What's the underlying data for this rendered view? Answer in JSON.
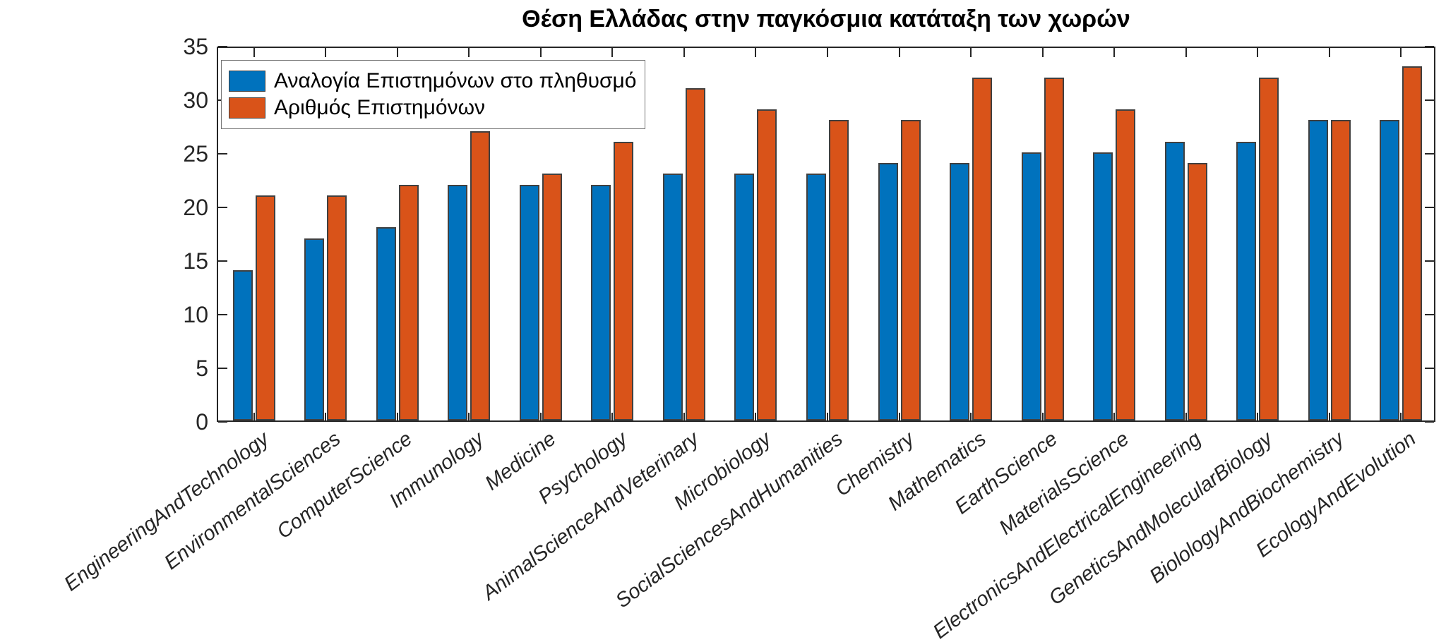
{
  "chart_data": {
    "type": "bar",
    "title": "Θέση Ελλάδας στην παγκόσμια κατάταξη των χωρών",
    "categories": [
      "EngineeringAndTechnology",
      "EnvironmentalSciences",
      "ComputerScience",
      "Immunology",
      "Medicine",
      "Psychology",
      "AnimalScienceAndVeterinary",
      "Microbiology",
      "SocialSciencesAndHumanities",
      "Chemistry",
      "Mathematics",
      "EarthScience",
      "MaterialsScience",
      "ElectronicsAndElectricalEngineering",
      "GeneticsAndMolecularBiology",
      "BiolologyAndBiochemistry",
      "EcologyAndEvolution"
    ],
    "series": [
      {
        "name": "Αναλογία Επιστημόνων στο πληθυσμό",
        "color": "#0072BD",
        "values": [
          14,
          17,
          18,
          22,
          22,
          22,
          23,
          23,
          23,
          24,
          24,
          25,
          25,
          26,
          26,
          28,
          28
        ]
      },
      {
        "name": "Αριθμός Επιστημόνων",
        "color": "#D95319",
        "values": [
          21,
          21,
          22,
          27,
          23,
          26,
          31,
          29,
          28,
          28,
          32,
          32,
          29,
          24,
          32,
          28,
          33
        ]
      }
    ],
    "ylim": [
      0,
      35
    ],
    "yticks": [
      0,
      5,
      10,
      15,
      20,
      25,
      30,
      35
    ],
    "xlabel": "",
    "ylabel": "",
    "grid": false,
    "legend_position": "top-left",
    "axis_color": "#262626",
    "bar_edge_color": "#404040"
  }
}
